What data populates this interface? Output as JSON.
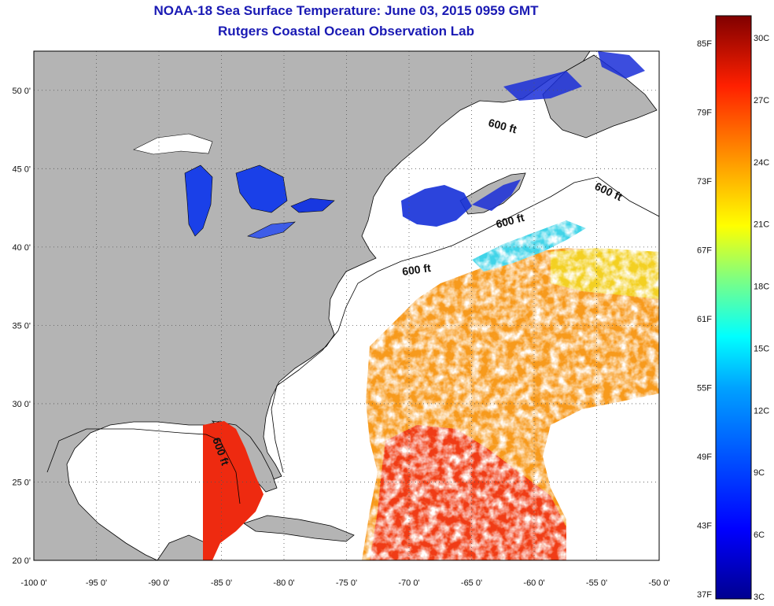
{
  "title": "NOAA-18 Sea Surface Temperature:  June 03, 2015 0959 GMT",
  "subtitle": "Rutgers Coastal Ocean Observation Lab",
  "colors": {
    "land": "#b4b4b4",
    "ocean_no_data": "#ffffff",
    "title_text": "#1a1ab4",
    "coastline": "#000000"
  },
  "map": {
    "lon_range": [
      -100,
      -50
    ],
    "lat_range": [
      20,
      52.5
    ],
    "lon_ticks": [
      "-100 0'",
      "-95 0'",
      "-90 0'",
      "-85 0'",
      "-80 0'",
      "-75 0'",
      "-70 0'",
      "-65 0'",
      "-60 0'",
      "-55 0'",
      "-50 0'"
    ],
    "lat_ticks": [
      "20 0'",
      "25 0'",
      "30 0'",
      "35 0'",
      "40 0'",
      "45 0'",
      "50 0'"
    ],
    "grid": "dotted",
    "contour_labels": [
      "600 ft",
      "600 ft",
      "600 ft",
      "600 ft",
      "600 ft"
    ]
  },
  "colorbar": {
    "fahrenheit_labels": [
      "85F",
      "79F",
      "73F",
      "67F",
      "61F",
      "55F",
      "49F",
      "43F",
      "37F"
    ],
    "celsius_labels": [
      "30C",
      "27C",
      "24C",
      "21C",
      "18C",
      "15C",
      "12C",
      "9C",
      "6C",
      "3C"
    ],
    "scale": [
      "#00008f",
      "#0000ff",
      "#0080ff",
      "#00ffff",
      "#80ff80",
      "#ffff00",
      "#ff8000",
      "#ff0000",
      "#800000"
    ]
  }
}
